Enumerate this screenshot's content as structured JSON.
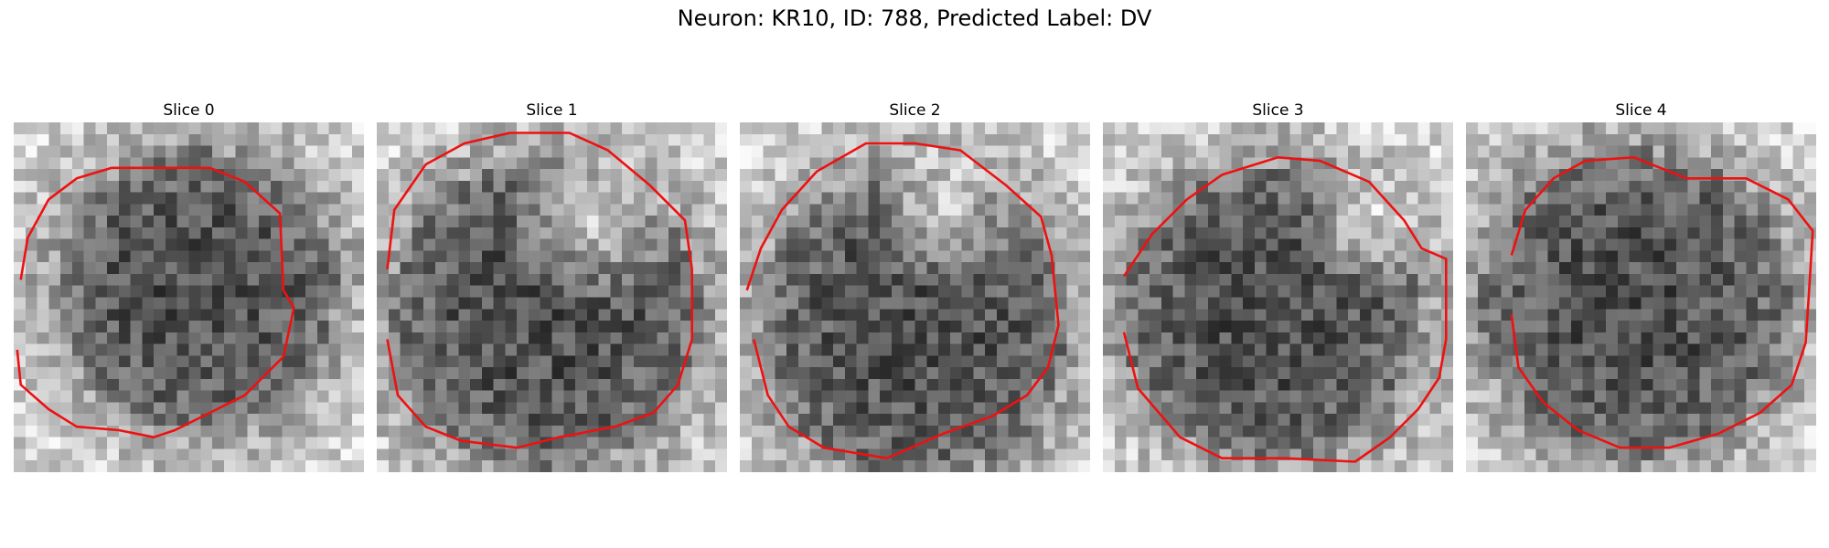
{
  "figure": {
    "title": "Neuron: KR10, ID: 788, Predicted Label: DV"
  },
  "panels": [
    {
      "title": "Slice 0",
      "seed": 11,
      "dark_center": [
        0.52,
        0.48
      ],
      "dark_radius": 0.4,
      "bright_spot": null,
      "contour": [
        [
          0.02,
          0.45
        ],
        [
          0.04,
          0.33
        ],
        [
          0.1,
          0.22
        ],
        [
          0.18,
          0.16
        ],
        [
          0.28,
          0.13
        ],
        [
          0.56,
          0.13
        ],
        [
          0.66,
          0.17
        ],
        [
          0.76,
          0.26
        ],
        [
          0.77,
          0.48
        ],
        [
          0.8,
          0.53
        ],
        [
          0.77,
          0.67
        ],
        [
          0.66,
          0.78
        ],
        [
          0.58,
          0.82
        ],
        [
          0.46,
          0.88
        ],
        [
          0.4,
          0.9
        ],
        [
          0.3,
          0.88
        ],
        [
          0.18,
          0.87
        ],
        [
          0.1,
          0.82
        ],
        [
          0.02,
          0.75
        ],
        [
          0.01,
          0.65
        ]
      ]
    },
    {
      "title": "Slice 1",
      "seed": 27,
      "dark_center": [
        0.48,
        0.55
      ],
      "dark_radius": 0.44,
      "bright_spot": [
        0.62,
        0.28,
        0.18
      ],
      "contour": [
        [
          0.03,
          0.42
        ],
        [
          0.05,
          0.25
        ],
        [
          0.14,
          0.12
        ],
        [
          0.25,
          0.06
        ],
        [
          0.38,
          0.03
        ],
        [
          0.55,
          0.03
        ],
        [
          0.66,
          0.08
        ],
        [
          0.78,
          0.18
        ],
        [
          0.88,
          0.28
        ],
        [
          0.9,
          0.42
        ],
        [
          0.9,
          0.62
        ],
        [
          0.86,
          0.75
        ],
        [
          0.79,
          0.83
        ],
        [
          0.68,
          0.87
        ],
        [
          0.52,
          0.9
        ],
        [
          0.4,
          0.93
        ],
        [
          0.24,
          0.91
        ],
        [
          0.14,
          0.87
        ],
        [
          0.06,
          0.78
        ],
        [
          0.03,
          0.62
        ]
      ]
    },
    {
      "title": "Slice 2",
      "seed": 43,
      "dark_center": [
        0.5,
        0.58
      ],
      "dark_radius": 0.44,
      "bright_spot": [
        0.58,
        0.26,
        0.16
      ],
      "contour": [
        [
          0.02,
          0.48
        ],
        [
          0.06,
          0.36
        ],
        [
          0.12,
          0.25
        ],
        [
          0.22,
          0.14
        ],
        [
          0.36,
          0.06
        ],
        [
          0.5,
          0.06
        ],
        [
          0.63,
          0.08
        ],
        [
          0.76,
          0.18
        ],
        [
          0.86,
          0.27
        ],
        [
          0.89,
          0.38
        ],
        [
          0.91,
          0.58
        ],
        [
          0.88,
          0.7
        ],
        [
          0.82,
          0.78
        ],
        [
          0.72,
          0.84
        ],
        [
          0.58,
          0.89
        ],
        [
          0.42,
          0.96
        ],
        [
          0.24,
          0.93
        ],
        [
          0.14,
          0.87
        ],
        [
          0.08,
          0.78
        ],
        [
          0.04,
          0.62
        ]
      ]
    },
    {
      "title": "Slice 3",
      "seed": 59,
      "dark_center": [
        0.48,
        0.55
      ],
      "dark_radius": 0.42,
      "bright_spot": [
        0.74,
        0.3,
        0.13
      ],
      "contour": [
        [
          0.06,
          0.44
        ],
        [
          0.14,
          0.32
        ],
        [
          0.24,
          0.22
        ],
        [
          0.34,
          0.15
        ],
        [
          0.5,
          0.1
        ],
        [
          0.62,
          0.11
        ],
        [
          0.76,
          0.17
        ],
        [
          0.86,
          0.28
        ],
        [
          0.91,
          0.36
        ],
        [
          0.98,
          0.39
        ],
        [
          0.98,
          0.62
        ],
        [
          0.96,
          0.73
        ],
        [
          0.9,
          0.82
        ],
        [
          0.82,
          0.9
        ],
        [
          0.72,
          0.97
        ],
        [
          0.52,
          0.96
        ],
        [
          0.34,
          0.96
        ],
        [
          0.22,
          0.9
        ],
        [
          0.1,
          0.76
        ],
        [
          0.06,
          0.6
        ]
      ]
    },
    {
      "title": "Slice 4",
      "seed": 71,
      "dark_center": [
        0.48,
        0.52
      ],
      "dark_radius": 0.44,
      "bright_spot": null,
      "contour": [
        [
          0.13,
          0.38
        ],
        [
          0.17,
          0.25
        ],
        [
          0.25,
          0.16
        ],
        [
          0.34,
          0.11
        ],
        [
          0.48,
          0.1
        ],
        [
          0.63,
          0.16
        ],
        [
          0.8,
          0.16
        ],
        [
          0.92,
          0.22
        ],
        [
          0.99,
          0.31
        ],
        [
          0.98,
          0.48
        ],
        [
          0.97,
          0.63
        ],
        [
          0.93,
          0.75
        ],
        [
          0.84,
          0.83
        ],
        [
          0.72,
          0.89
        ],
        [
          0.58,
          0.93
        ],
        [
          0.44,
          0.93
        ],
        [
          0.32,
          0.88
        ],
        [
          0.22,
          0.8
        ],
        [
          0.15,
          0.7
        ],
        [
          0.13,
          0.55
        ]
      ]
    }
  ],
  "colors": {
    "contour": "#ee1111"
  }
}
